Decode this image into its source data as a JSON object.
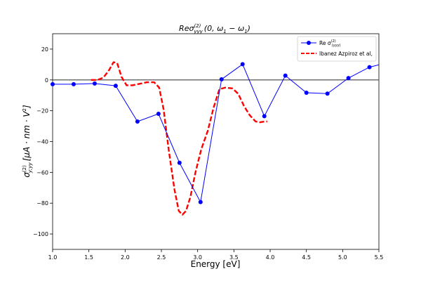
{
  "chart_data": {
    "type": "line",
    "title": {
      "base": "Reσ",
      "sup": "(2)",
      "sub": "yyy",
      "rest": "(0, ω",
      "sub1": "1",
      "mid": " − ω",
      "sub2": "1",
      "end": ")"
    },
    "xlabel": "Energy [eV]",
    "ylabel": {
      "base": "σ",
      "sup": "(2)",
      "sub": "y;yy",
      "rest": "[μA · nm · V",
      "sup2": "2",
      "end": "]"
    },
    "xlim": [
      1.0,
      5.5
    ],
    "ylim": [
      -110,
      30
    ],
    "x_ticks": [
      1.0,
      1.5,
      2.0,
      2.5,
      3.0,
      3.5,
      4.0,
      4.5,
      5.0,
      5.5
    ],
    "x_tick_labels": [
      "1.0",
      "1.5",
      "2.0",
      "2.5",
      "3.0",
      "3.5",
      "4.0",
      "4.5",
      "5.0",
      "5.5"
    ],
    "y_ticks": [
      20,
      0,
      -20,
      -40,
      -60,
      -80,
      -100
    ],
    "y_tick_labels": [
      "20",
      "0",
      "−20",
      "−40",
      "−60",
      "−80",
      "−100"
    ],
    "zero_line": true,
    "grid": false,
    "legend_position": "top-right",
    "series": [
      {
        "name": {
          "base": "Re σ",
          "sup": "(2)",
          "sub": "(yyy)"
        },
        "style": "line-marker",
        "color": "#0000ff",
        "x": [
          1.0,
          1.29,
          1.58,
          1.87,
          2.17,
          2.46,
          2.75,
          3.04,
          3.33,
          3.62,
          3.92,
          4.21,
          4.5,
          4.79,
          5.08,
          5.37,
          5.5
        ],
        "y": [
          -2.8,
          -2.8,
          -2.3,
          -3.8,
          -27.0,
          -22.0,
          -53.8,
          -79.3,
          0.4,
          10.2,
          -23.5,
          2.8,
          -8.3,
          -8.9,
          1.2,
          8.3,
          9.8
        ],
        "marker_count": 16
      },
      {
        "name": "Ibanez Azpiroz et al,",
        "style": "dashed",
        "color": "#ff0000",
        "x": [
          1.53,
          1.62,
          1.7,
          1.78,
          1.84,
          1.89,
          1.95,
          2.02,
          2.1,
          2.2,
          2.3,
          2.4,
          2.47,
          2.53,
          2.6,
          2.68,
          2.74,
          2.79,
          2.84,
          2.9,
          2.97,
          3.05,
          3.14,
          3.22,
          3.3,
          3.38,
          3.48,
          3.56,
          3.64,
          3.72,
          3.8,
          3.86,
          3.92,
          3.96
        ],
        "y": [
          0,
          0,
          1.5,
          6.5,
          11.5,
          11.0,
          2.0,
          -3.5,
          -3.5,
          -2.5,
          -1.5,
          -1.5,
          -5.0,
          -19.0,
          -45.0,
          -71.0,
          -85.0,
          -87.5,
          -85.0,
          -76.0,
          -60.0,
          -45.0,
          -33.0,
          -18.0,
          -6.0,
          -5.0,
          -5.5,
          -9.0,
          -17.0,
          -23.0,
          -27.0,
          -27.5,
          -27.0,
          -27.0
        ]
      }
    ]
  }
}
